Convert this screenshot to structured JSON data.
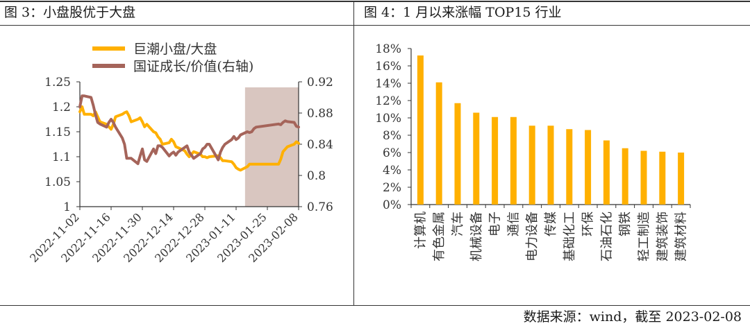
{
  "header": {
    "left_title": "图 3：小盘股优于大盘",
    "right_title": "图 4：1 月以来涨幅 TOP15 行业"
  },
  "source": "数据来源：wind，截至 2023-02-08",
  "colors": {
    "orange": "#FFB000",
    "brown": "#A5645A",
    "shade": "#D9C6C0",
    "axis": "#333333"
  },
  "chart_data": [
    {
      "type": "line",
      "legend_position": "top-center",
      "x_tick_labels": [
        "2022-11-02",
        "2022-11-16",
        "2022-11-30",
        "2022-12-14",
        "2022-12-28",
        "2023-01-11",
        "2023-01-25",
        "2023-02-08"
      ],
      "x_range": [
        "2022-11-02",
        "2023-02-08"
      ],
      "shaded_range": [
        "2023-01-15",
        "2023-02-08"
      ],
      "y_left": {
        "ylim": [
          1,
          1.25
        ],
        "ticks": [
          "1",
          "1.05",
          "1.1",
          "1.15",
          "1.2",
          "1.25"
        ]
      },
      "y_right": {
        "ylim": [
          0.76,
          0.92
        ],
        "ticks": [
          "0.76",
          "0.8",
          "0.84",
          "0.88",
          "0.92"
        ]
      },
      "series": [
        {
          "name": "巨潮小盘/大盘",
          "axis": "left",
          "color": "#FFB000",
          "points": [
            [
              "2022-11-02",
              1.19
            ],
            [
              "2022-11-03",
              1.2
            ],
            [
              "2022-11-04",
              1.185
            ],
            [
              "2022-11-07",
              1.185
            ],
            [
              "2022-11-08",
              1.182
            ],
            [
              "2022-11-09",
              1.19
            ],
            [
              "2022-11-10",
              1.18
            ],
            [
              "2022-11-11",
              1.17
            ],
            [
              "2022-11-14",
              1.165
            ],
            [
              "2022-11-15",
              1.16
            ],
            [
              "2022-11-16",
              1.155
            ],
            [
              "2022-11-17",
              1.165
            ],
            [
              "2022-11-18",
              1.18
            ],
            [
              "2022-11-21",
              1.185
            ],
            [
              "2022-11-22",
              1.188
            ],
            [
              "2022-11-23",
              1.19
            ],
            [
              "2022-11-24",
              1.182
            ],
            [
              "2022-11-25",
              1.17
            ],
            [
              "2022-11-28",
              1.175
            ],
            [
              "2022-11-29",
              1.178
            ],
            [
              "2022-11-30",
              1.17
            ],
            [
              "2022-12-01",
              1.16
            ],
            [
              "2022-12-02",
              1.165
            ],
            [
              "2022-12-05",
              1.15
            ],
            [
              "2022-12-06",
              1.148
            ],
            [
              "2022-12-07",
              1.14
            ],
            [
              "2022-12-08",
              1.135
            ],
            [
              "2022-12-09",
              1.125
            ],
            [
              "2022-12-12",
              1.128
            ],
            [
              "2022-12-13",
              1.135
            ],
            [
              "2022-12-14",
              1.13
            ],
            [
              "2022-12-15",
              1.12
            ],
            [
              "2022-12-16",
              1.118
            ],
            [
              "2022-12-19",
              1.112
            ],
            [
              "2022-12-20",
              1.105
            ],
            [
              "2022-12-21",
              1.1
            ],
            [
              "2022-12-22",
              1.105
            ],
            [
              "2022-12-23",
              1.11
            ],
            [
              "2022-12-26",
              1.105
            ],
            [
              "2022-12-27",
              1.1
            ],
            [
              "2022-12-28",
              1.1
            ],
            [
              "2022-12-29",
              1.098
            ],
            [
              "2022-12-30",
              1.1
            ],
            [
              "2023-01-03",
              1.102
            ],
            [
              "2023-01-04",
              1.098
            ],
            [
              "2023-01-05",
              1.092
            ],
            [
              "2023-01-06",
              1.092
            ],
            [
              "2023-01-09",
              1.09
            ],
            [
              "2023-01-10",
              1.085
            ],
            [
              "2023-01-11",
              1.078
            ],
            [
              "2023-01-12",
              1.075
            ],
            [
              "2023-01-13",
              1.073
            ],
            [
              "2023-01-16",
              1.08
            ],
            [
              "2023-01-17",
              1.085
            ],
            [
              "2023-01-18",
              1.085
            ],
            [
              "2023-01-19",
              1.085
            ],
            [
              "2023-01-20",
              1.085
            ],
            [
              "2023-01-30",
              1.085
            ],
            [
              "2023-01-31",
              1.095
            ],
            [
              "2023-02-01",
              1.11
            ],
            [
              "2023-02-02",
              1.115
            ],
            [
              "2023-02-03",
              1.12
            ],
            [
              "2023-02-06",
              1.125
            ],
            [
              "2023-02-07",
              1.13
            ],
            [
              "2023-02-08",
              1.127
            ]
          ]
        },
        {
          "name": "国证成长/价值(右轴)",
          "axis": "right",
          "color": "#A5645A",
          "points": [
            [
              "2022-11-02",
              0.888
            ],
            [
              "2022-11-03",
              0.902
            ],
            [
              "2022-11-04",
              0.902
            ],
            [
              "2022-11-07",
              0.9
            ],
            [
              "2022-11-08",
              0.89
            ],
            [
              "2022-11-09",
              0.878
            ],
            [
              "2022-11-10",
              0.868
            ],
            [
              "2022-11-11",
              0.866
            ],
            [
              "2022-11-14",
              0.862
            ],
            [
              "2022-11-15",
              0.868
            ],
            [
              "2022-11-16",
              0.872
            ],
            [
              "2022-11-17",
              0.868
            ],
            [
              "2022-11-18",
              0.862
            ],
            [
              "2022-11-21",
              0.848
            ],
            [
              "2022-11-22",
              0.84
            ],
            [
              "2022-11-23",
              0.822
            ],
            [
              "2022-11-24",
              0.822
            ],
            [
              "2022-11-25",
              0.822
            ],
            [
              "2022-11-28",
              0.815
            ],
            [
              "2022-11-29",
              0.825
            ],
            [
              "2022-11-30",
              0.834
            ],
            [
              "2022-12-01",
              0.82
            ],
            [
              "2022-12-02",
              0.818
            ],
            [
              "2022-12-05",
              0.834
            ],
            [
              "2022-12-06",
              0.828
            ],
            [
              "2022-12-07",
              0.838
            ],
            [
              "2022-12-08",
              0.838
            ],
            [
              "2022-12-09",
              0.836
            ],
            [
              "2022-12-12",
              0.825
            ],
            [
              "2022-12-13",
              0.828
            ],
            [
              "2022-12-14",
              0.83
            ],
            [
              "2022-12-15",
              0.826
            ],
            [
              "2022-12-16",
              0.83
            ],
            [
              "2022-12-19",
              0.836
            ],
            [
              "2022-12-20",
              0.838
            ],
            [
              "2022-12-21",
              0.83
            ],
            [
              "2022-12-22",
              0.826
            ],
            [
              "2022-12-23",
              0.822
            ],
            [
              "2022-12-26",
              0.828
            ],
            [
              "2022-12-27",
              0.834
            ],
            [
              "2022-12-28",
              0.836
            ],
            [
              "2022-12-29",
              0.84
            ],
            [
              "2022-12-30",
              0.84
            ],
            [
              "2023-01-03",
              0.82
            ],
            [
              "2023-01-04",
              0.83
            ],
            [
              "2023-01-05",
              0.836
            ],
            [
              "2023-01-06",
              0.84
            ],
            [
              "2023-01-09",
              0.846
            ],
            [
              "2023-01-10",
              0.85
            ],
            [
              "2023-01-11",
              0.846
            ],
            [
              "2023-01-12",
              0.848
            ],
            [
              "2023-01-13",
              0.852
            ],
            [
              "2023-01-16",
              0.856
            ],
            [
              "2023-01-17",
              0.855
            ],
            [
              "2023-01-18",
              0.856
            ],
            [
              "2023-01-19",
              0.86
            ],
            [
              "2023-01-20",
              0.862
            ],
            [
              "2023-01-30",
              0.866
            ],
            [
              "2023-01-31",
              0.865
            ],
            [
              "2023-02-01",
              0.868
            ],
            [
              "2023-02-02",
              0.87
            ],
            [
              "2023-02-03",
              0.869
            ],
            [
              "2023-02-06",
              0.868
            ],
            [
              "2023-02-07",
              0.863
            ],
            [
              "2023-02-08",
              0.862
            ]
          ]
        }
      ]
    },
    {
      "type": "bar",
      "color": "#FFB000",
      "categories": [
        "计算机",
        "有色金属",
        "汽车",
        "机械设备",
        "电子",
        "通信",
        "电力设备",
        "传媒",
        "基础化工",
        "环保",
        "石油石化",
        "钢铁",
        "轻工制造",
        "建筑装饰",
        "建筑材料"
      ],
      "values": [
        17.2,
        14.1,
        11.7,
        10.6,
        10.1,
        10.1,
        9.1,
        9.1,
        8.7,
        8.6,
        7.4,
        6.5,
        6.2,
        6.1,
        6.0
      ],
      "ylim": [
        0,
        18
      ],
      "y_ticks": [
        "0%",
        "2%",
        "4%",
        "6%",
        "8%",
        "10%",
        "12%",
        "14%",
        "16%",
        "18%"
      ]
    }
  ]
}
